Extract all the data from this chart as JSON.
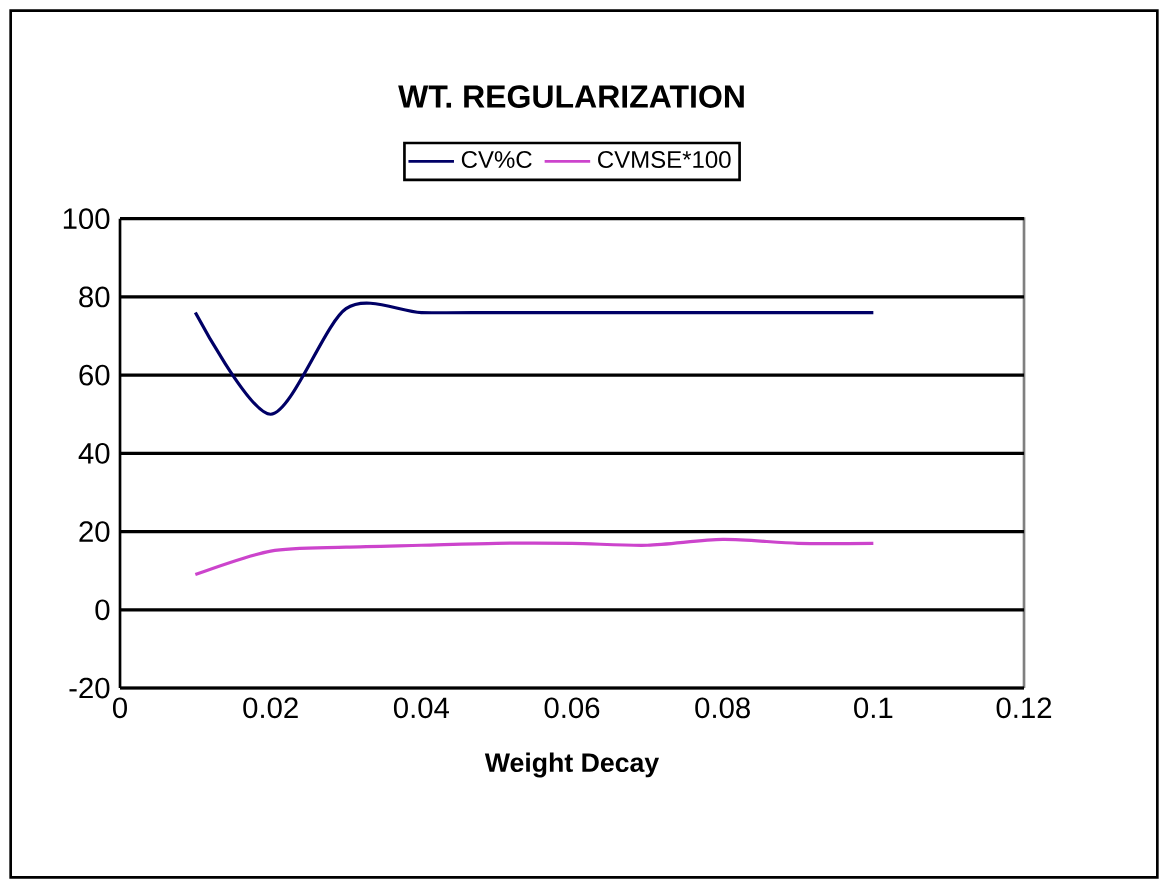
{
  "chart_data": {
    "type": "line",
    "title": "WT. REGULARIZATION",
    "xlabel": "Weight Decay",
    "x": [
      0.01,
      0.02,
      0.03,
      0.04,
      0.05,
      0.06,
      0.07,
      0.08,
      0.09,
      0.1
    ],
    "series": [
      {
        "name": "CV%C",
        "color": "#000066",
        "values": [
          76,
          50,
          77,
          76,
          76,
          76,
          76,
          76,
          76,
          76
        ]
      },
      {
        "name": "CVMSE*100",
        "color": "#cc44cc",
        "values": [
          9,
          15,
          16,
          16.5,
          17,
          17,
          16.5,
          18,
          17,
          17
        ]
      }
    ],
    "xlim": [
      0,
      0.12
    ],
    "xticks": [
      0,
      0.02,
      0.04,
      0.06,
      0.08,
      0.1,
      0.12
    ],
    "ylim": [
      -20,
      100
    ],
    "yticks": [
      -20,
      0,
      20,
      40,
      60,
      80,
      100
    ],
    "grid": "y",
    "legend": "top",
    "marker": "none"
  }
}
